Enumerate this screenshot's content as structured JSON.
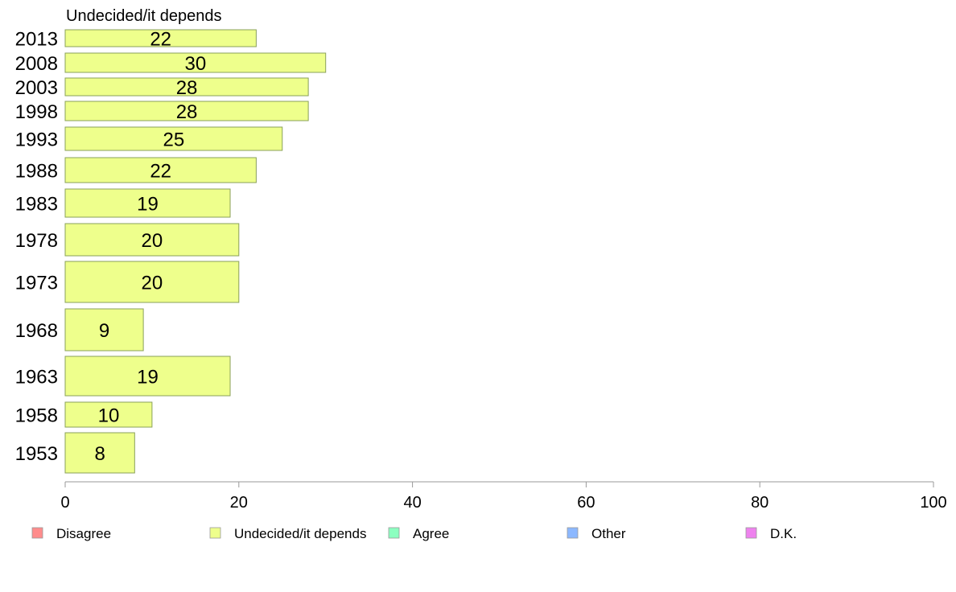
{
  "chart_data": {
    "type": "bar",
    "orientation": "horizontal",
    "panel_title": "Undecided/it depends",
    "categories": [
      "2013",
      "2008",
      "2003",
      "1998",
      "1993",
      "1988",
      "1983",
      "1978",
      "1973",
      "1968",
      "1963",
      "1958",
      "1953"
    ],
    "series": [
      {
        "name": "Undecided/it depends",
        "color": "#eeff8c",
        "values": [
          22,
          30,
          28,
          28,
          25,
          22,
          19,
          20,
          20,
          9,
          19,
          10,
          8
        ]
      }
    ],
    "value_labels": [
      "22",
      "30",
      "28",
      "28",
      "25",
      "22",
      "19",
      "20",
      "20",
      "9",
      "19",
      "10",
      "8"
    ],
    "xlim": [
      0,
      100
    ],
    "x_ticks": [
      "0",
      "20",
      "40",
      "60",
      "80",
      "100"
    ],
    "grid": false,
    "legend": {
      "position": "bottom",
      "items": [
        {
          "label": "Disagree",
          "color": "#ff8c8c"
        },
        {
          "label": "Undecided/it depends",
          "color": "#eeff8c"
        },
        {
          "label": "Agree",
          "color": "#8cffc0"
        },
        {
          "label": "Other",
          "color": "#8cb8ff"
        },
        {
          "label": "D.K.",
          "color": "#ee82ee"
        }
      ]
    }
  }
}
